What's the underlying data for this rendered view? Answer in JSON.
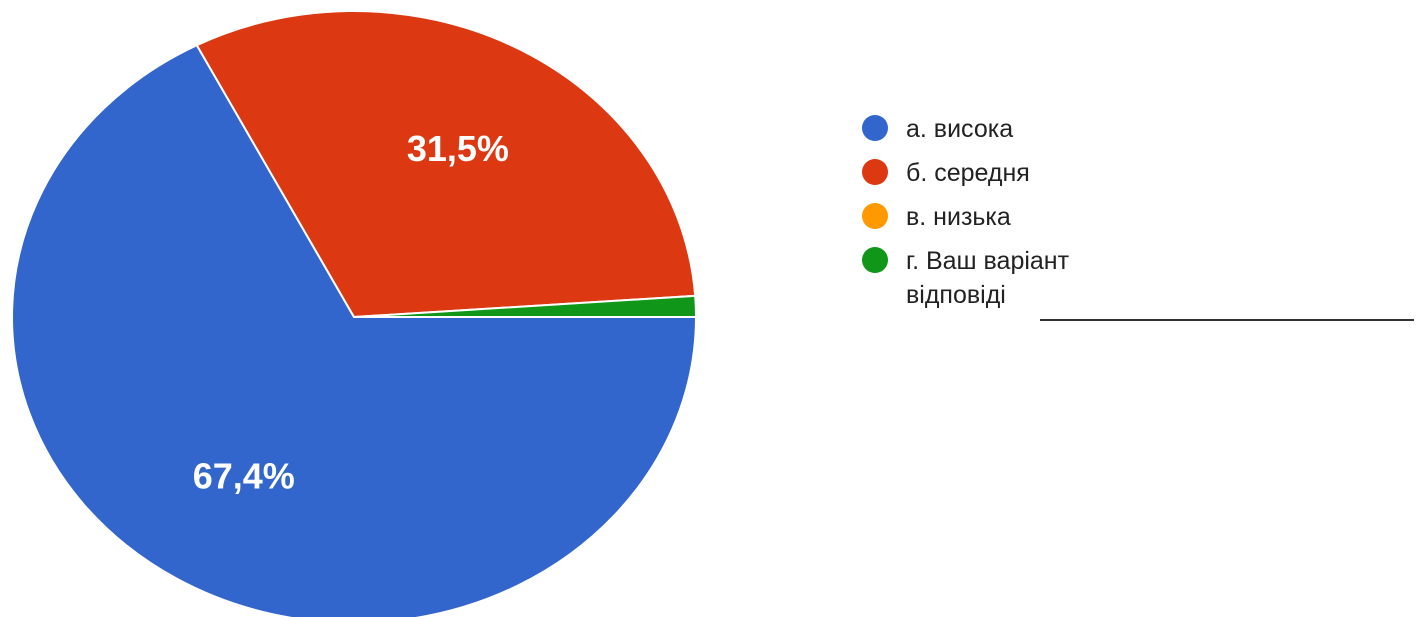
{
  "chart_data": {
    "type": "pie",
    "title": "",
    "slices": [
      {
        "name": "а. висока",
        "value": 67.4,
        "label": "67,4%",
        "color": "#3366cc"
      },
      {
        "name": "б. середня",
        "value": 31.5,
        "label": "31,5%",
        "color": "#dc3912"
      },
      {
        "name": "в. низька",
        "value": 0.0,
        "label": "",
        "color": "#ff9900"
      },
      {
        "name": "г. Ваш варіант відповіді",
        "value": 1.1,
        "label": "",
        "color": "#109618"
      }
    ],
    "legend": {
      "position": "right",
      "items": [
        {
          "text": "а. висока",
          "color": "#3366cc"
        },
        {
          "text": "б. середня",
          "color": "#dc3912"
        },
        {
          "text": "в. низька",
          "color": "#ff9900"
        },
        {
          "text": "г. Ваш варіант\nвідповіді",
          "color": "#109618"
        }
      ]
    }
  }
}
